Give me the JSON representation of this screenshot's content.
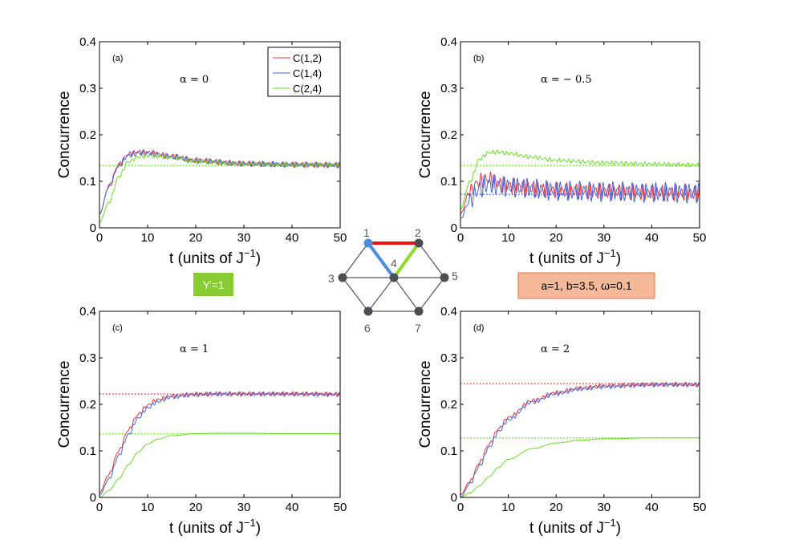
{
  "chart_data": [
    {
      "type": "line",
      "panel": "(a)",
      "annotation": "α = 0",
      "xlabel": "t (units of J",
      "xlabel_sup": "−1",
      "xlabel_end": ")",
      "ylabel": "Concurrence",
      "xlim": [
        0,
        50
      ],
      "ylim": [
        0,
        0.4
      ],
      "xticks": [
        "0",
        "10",
        "20",
        "30",
        "40",
        "50"
      ],
      "yticks": [
        "0",
        "0.1",
        "0.2",
        "0.3",
        "0.4"
      ],
      "series": [
        {
          "name": "C(1,2)",
          "color": "#ee3333",
          "x": [
            0,
            2,
            4,
            6,
            8,
            10,
            15,
            20,
            30,
            40,
            50
          ],
          "values": [
            0.03,
            0.09,
            0.135,
            0.158,
            0.163,
            0.162,
            0.154,
            0.145,
            0.138,
            0.136,
            0.135
          ],
          "osc": 0.004
        },
        {
          "name": "C(1,4)",
          "color": "#4466dd",
          "x": [
            0,
            2,
            4,
            6,
            8,
            10,
            15,
            20,
            30,
            40,
            50
          ],
          "values": [
            0.03,
            0.09,
            0.135,
            0.156,
            0.161,
            0.16,
            0.153,
            0.144,
            0.138,
            0.136,
            0.135
          ],
          "osc": 0.004
        },
        {
          "name": "C(2,4)",
          "color": "#66dd22",
          "x": [
            0,
            2,
            4,
            6,
            8,
            10,
            15,
            20,
            30,
            40,
            50
          ],
          "values": [
            0.012,
            0.055,
            0.11,
            0.142,
            0.152,
            0.155,
            0.151,
            0.143,
            0.137,
            0.135,
            0.135
          ],
          "osc": 0.003
        }
      ],
      "reference_lines": [
        {
          "y": 0.134,
          "color": "#66dd22"
        }
      ]
    },
    {
      "type": "line",
      "panel": "(b)",
      "annotation": "α = − 0.5",
      "xlabel": "t (units of J",
      "xlabel_sup": "−1",
      "xlabel_end": ")",
      "ylabel": "Concurrence",
      "xlim": [
        0,
        50
      ],
      "ylim": [
        0,
        0.4
      ],
      "xticks": [
        "0",
        "10",
        "20",
        "30",
        "40",
        "50"
      ],
      "yticks": [
        "0",
        "0.1",
        "0.2",
        "0.3",
        "0.4"
      ],
      "series": [
        {
          "name": "C(1,2)",
          "color": "#ee3333",
          "x": [
            0,
            2,
            4,
            6,
            8,
            10,
            20,
            30,
            40,
            50
          ],
          "values": [
            0.03,
            0.08,
            0.1,
            0.105,
            0.095,
            0.09,
            0.08,
            0.078,
            0.076,
            0.075
          ],
          "osc": 0.012
        },
        {
          "name": "C(1,4)",
          "color": "#4466dd",
          "x": [
            0,
            2,
            4,
            6,
            8,
            10,
            20,
            30,
            40,
            50
          ],
          "values": [
            0.02,
            0.06,
            0.085,
            0.095,
            0.09,
            0.088,
            0.08,
            0.078,
            0.076,
            0.075
          ],
          "osc": 0.015
        },
        {
          "name": "C(2,4)",
          "color": "#66dd22",
          "x": [
            0,
            2,
            4,
            6,
            8,
            10,
            15,
            20,
            30,
            40,
            50
          ],
          "values": [
            0.04,
            0.1,
            0.148,
            0.162,
            0.163,
            0.16,
            0.152,
            0.145,
            0.14,
            0.137,
            0.135
          ],
          "osc": 0.003
        }
      ],
      "reference_lines": [
        {
          "y": 0.134,
          "color": "#66dd22"
        },
        {
          "y": 0.072,
          "color": "#4466dd"
        }
      ]
    },
    {
      "type": "line",
      "panel": "(c)",
      "annotation": "α = 1",
      "xlabel": "t (units of J",
      "xlabel_sup": "−1",
      "xlabel_end": ")",
      "ylabel": "Concurrence",
      "xlim": [
        0,
        50
      ],
      "ylim": [
        0,
        0.4
      ],
      "xticks": [
        "0",
        "10",
        "20",
        "30",
        "40",
        "50"
      ],
      "yticks": [
        "0",
        "0.1",
        "0.2",
        "0.3",
        "0.4"
      ],
      "series": [
        {
          "name": "C(1,2)",
          "color": "#ee3333",
          "x": [
            0,
            2,
            4,
            6,
            8,
            10,
            12,
            15,
            20,
            25,
            30,
            40,
            50
          ],
          "values": [
            0.01,
            0.05,
            0.1,
            0.145,
            0.178,
            0.198,
            0.21,
            0.218,
            0.222,
            0.223,
            0.223,
            0.223,
            0.222
          ],
          "osc": 0.003
        },
        {
          "name": "C(1,4)",
          "color": "#4466dd",
          "x": [
            0,
            2,
            4,
            6,
            8,
            10,
            12,
            15,
            20,
            25,
            30,
            40,
            50
          ],
          "values": [
            0.005,
            0.04,
            0.09,
            0.135,
            0.17,
            0.192,
            0.206,
            0.216,
            0.221,
            0.222,
            0.222,
            0.222,
            0.221
          ],
          "osc": 0.003
        },
        {
          "name": "C(2,4)",
          "color": "#66dd22",
          "x": [
            0,
            2,
            4,
            6,
            8,
            10,
            12,
            15,
            20,
            25,
            30,
            40,
            50
          ],
          "values": [
            0.0,
            0.015,
            0.04,
            0.07,
            0.097,
            0.115,
            0.125,
            0.133,
            0.137,
            0.138,
            0.138,
            0.137,
            0.137
          ],
          "osc": 0.0
        }
      ],
      "reference_lines": [
        {
          "y": 0.222,
          "color": "#ee3333"
        },
        {
          "y": 0.137,
          "color": "#66dd22"
        }
      ]
    },
    {
      "type": "line",
      "panel": "(d)",
      "annotation": "α = 2",
      "xlabel": "t (units of J",
      "xlabel_sup": "−1",
      "xlabel_end": ")",
      "ylabel": "Concurrence",
      "xlim": [
        0,
        50
      ],
      "ylim": [
        0,
        0.4
      ],
      "xticks": [
        "0",
        "10",
        "20",
        "30",
        "40",
        "50"
      ],
      "yticks": [
        "0",
        "0.1",
        "0.2",
        "0.3",
        "0.4"
      ],
      "series": [
        {
          "name": "C(1,2)",
          "color": "#ee3333",
          "x": [
            0,
            2,
            4,
            6,
            8,
            10,
            15,
            20,
            25,
            30,
            40,
            50
          ],
          "values": [
            0.005,
            0.035,
            0.075,
            0.115,
            0.148,
            0.172,
            0.208,
            0.225,
            0.235,
            0.24,
            0.243,
            0.243
          ],
          "osc": 0.003
        },
        {
          "name": "C(1,4)",
          "color": "#4466dd",
          "x": [
            0,
            2,
            4,
            6,
            8,
            10,
            15,
            20,
            25,
            30,
            40,
            50
          ],
          "values": [
            0.0,
            0.03,
            0.068,
            0.108,
            0.142,
            0.167,
            0.205,
            0.223,
            0.233,
            0.238,
            0.242,
            0.242
          ],
          "osc": 0.003
        },
        {
          "name": "C(2,4)",
          "color": "#66dd22",
          "x": [
            0,
            2,
            4,
            6,
            8,
            10,
            15,
            20,
            25,
            30,
            40,
            50
          ],
          "values": [
            0.0,
            0.01,
            0.025,
            0.045,
            0.065,
            0.082,
            0.105,
            0.117,
            0.123,
            0.126,
            0.128,
            0.128
          ],
          "osc": 0.0
        }
      ],
      "reference_lines": [
        {
          "y": 0.245,
          "color": "#ee3333"
        },
        {
          "y": 0.128,
          "color": "#66dd22"
        }
      ]
    }
  ],
  "legend": [
    {
      "label": "C(1,2)",
      "color": "#ee3333"
    },
    {
      "label": "C(1,4)",
      "color": "#4466dd"
    },
    {
      "label": "C(2,4)",
      "color": "#66dd22"
    }
  ],
  "lattice": {
    "nodes": [
      "1",
      "2",
      "3",
      "4",
      "5",
      "6",
      "7"
    ],
    "highlight_colors": {
      "edge_1_2": "#ee1111",
      "edge_1_4": "#4a8ee0",
      "edge_2_4": "#88dd22"
    }
  },
  "gamma_box": {
    "text": "ϒ=1",
    "color": "#88cc33"
  },
  "params_box": {
    "text": "a=1, b=3.5, ω=0.1",
    "color": "#f5b99a",
    "border": "#e2733e"
  }
}
